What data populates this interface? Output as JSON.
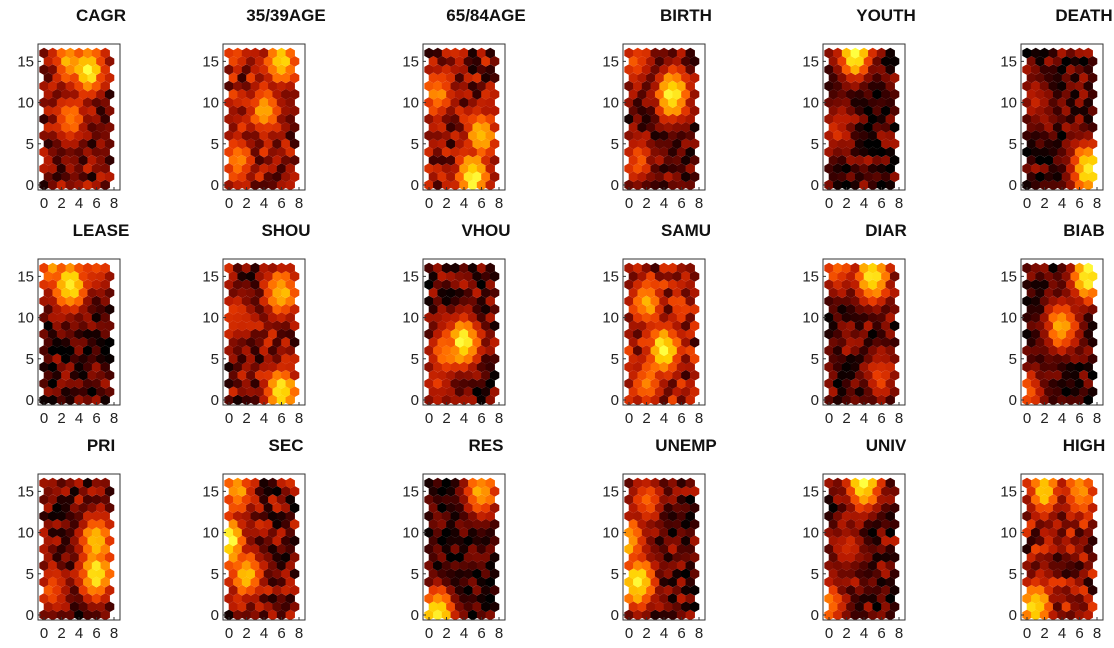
{
  "figure": {
    "grid_columns": 6,
    "grid_rows": 3,
    "colormap": [
      "#000000",
      "#3a0000",
      "#7a0a00",
      "#b81a00",
      "#e83a00",
      "#ff6a00",
      "#ffa000",
      "#ffd000",
      "#ffff40"
    ]
  },
  "chart_data": [
    {
      "type": "heatmap",
      "title": "CAGR",
      "xticks": [
        0,
        2,
        4,
        6,
        8
      ],
      "yticks": [
        0,
        5,
        10,
        15
      ],
      "xlim": [
        0,
        8
      ],
      "ylim": [
        0,
        16.5
      ],
      "hotspots": [
        {
          "x": 5,
          "y": 14,
          "v": 1.0
        },
        {
          "x": 3,
          "y": 15,
          "v": 0.8
        },
        {
          "x": 3,
          "y": 8,
          "v": 0.7
        }
      ],
      "base": 0.35
    },
    {
      "type": "heatmap",
      "title": "35/39AGE",
      "xticks": [
        0,
        2,
        4,
        6,
        8
      ],
      "yticks": [
        0,
        5,
        10,
        15
      ],
      "xlim": [
        0,
        8
      ],
      "ylim": [
        0,
        16.5
      ],
      "hotspots": [
        {
          "x": 1,
          "y": 3,
          "v": 0.7
        },
        {
          "x": 4,
          "y": 9,
          "v": 0.75
        },
        {
          "x": 6,
          "y": 15,
          "v": 0.9
        }
      ],
      "base": 0.55
    },
    {
      "type": "heatmap",
      "title": "65/84AGE",
      "xticks": [
        0,
        2,
        4,
        6,
        8
      ],
      "yticks": [
        0,
        5,
        10,
        15
      ],
      "xlim": [
        0,
        8
      ],
      "ylim": [
        0,
        16.5
      ],
      "hotspots": [
        {
          "x": 5,
          "y": 1,
          "v": 1.0
        },
        {
          "x": 6,
          "y": 6,
          "v": 0.85
        },
        {
          "x": 1,
          "y": 11,
          "v": 0.7
        }
      ],
      "base": 0.42
    },
    {
      "type": "heatmap",
      "title": "BIRTH",
      "xticks": [
        0,
        2,
        4,
        6,
        8
      ],
      "yticks": [
        0,
        5,
        10,
        15
      ],
      "xlim": [
        0,
        8
      ],
      "ylim": [
        0,
        16.5
      ],
      "hotspots": [
        {
          "x": 5,
          "y": 11,
          "v": 1.0
        },
        {
          "x": 1,
          "y": 3,
          "v": 0.55
        },
        {
          "x": 1,
          "y": 15,
          "v": 0.55
        }
      ],
      "base": 0.3
    },
    {
      "type": "heatmap",
      "title": "YOUTH",
      "xticks": [
        0,
        2,
        4,
        6,
        8
      ],
      "yticks": [
        0,
        5,
        10,
        15
      ],
      "xlim": [
        0,
        8
      ],
      "ylim": [
        0,
        16.5
      ],
      "hotspots": [
        {
          "x": 3,
          "y": 16,
          "v": 1.0
        },
        {
          "x": 1,
          "y": 7,
          "v": 0.45
        }
      ],
      "base": 0.25
    },
    {
      "type": "heatmap",
      "title": "DEATH",
      "xticks": [
        0,
        2,
        4,
        6,
        8
      ],
      "yticks": [
        0,
        5,
        10,
        15
      ],
      "xlim": [
        0,
        8
      ],
      "ylim": [
        0,
        16.5
      ],
      "hotspots": [
        {
          "x": 7,
          "y": 2,
          "v": 1.0
        },
        {
          "x": 1,
          "y": 10,
          "v": 0.4
        }
      ],
      "base": 0.2
    },
    {
      "type": "heatmap",
      "title": "LEASE",
      "xticks": [
        0,
        2,
        4,
        6,
        8
      ],
      "yticks": [
        0,
        5,
        10,
        15
      ],
      "xlim": [
        0,
        8
      ],
      "ylim": [
        0,
        16.5
      ],
      "hotspots": [
        {
          "x": 3,
          "y": 14,
          "v": 1.0
        },
        {
          "x": 1,
          "y": 16,
          "v": 0.7
        },
        {
          "x": 6,
          "y": 16,
          "v": 0.55
        }
      ],
      "base": 0.22
    },
    {
      "type": "heatmap",
      "title": "SHOU",
      "xticks": [
        0,
        2,
        4,
        6,
        8
      ],
      "yticks": [
        0,
        5,
        10,
        15
      ],
      "xlim": [
        0,
        8
      ],
      "ylim": [
        0,
        16.5
      ],
      "hotspots": [
        {
          "x": 6,
          "y": 1,
          "v": 0.95
        },
        {
          "x": 6,
          "y": 13,
          "v": 0.85
        },
        {
          "x": 1,
          "y": 10,
          "v": 0.5
        }
      ],
      "base": 0.4
    },
    {
      "type": "heatmap",
      "title": "VHOU",
      "xticks": [
        0,
        2,
        4,
        6,
        8
      ],
      "yticks": [
        0,
        5,
        10,
        15
      ],
      "xlim": [
        0,
        8
      ],
      "ylim": [
        0,
        16.5
      ],
      "hotspots": [
        {
          "x": 4,
          "y": 7,
          "v": 1.0
        },
        {
          "x": 2,
          "y": 6,
          "v": 0.7
        },
        {
          "x": 1,
          "y": 2,
          "v": 0.45
        }
      ],
      "base": 0.28
    },
    {
      "type": "heatmap",
      "title": "SAMU",
      "xticks": [
        0,
        2,
        4,
        6,
        8
      ],
      "yticks": [
        0,
        5,
        10,
        15
      ],
      "xlim": [
        0,
        8
      ],
      "ylim": [
        0,
        16.5
      ],
      "hotspots": [
        {
          "x": 4,
          "y": 6,
          "v": 1.0
        },
        {
          "x": 2,
          "y": 12,
          "v": 0.8
        },
        {
          "x": 2,
          "y": 2,
          "v": 0.7
        }
      ],
      "base": 0.55
    },
    {
      "type": "heatmap",
      "title": "DIAR",
      "xticks": [
        0,
        2,
        4,
        6,
        8
      ],
      "yticks": [
        0,
        5,
        10,
        15
      ],
      "xlim": [
        0,
        8
      ],
      "ylim": [
        0,
        16.5
      ],
      "hotspots": [
        {
          "x": 5,
          "y": 15,
          "v": 1.0
        },
        {
          "x": 1,
          "y": 16,
          "v": 0.6
        },
        {
          "x": 6,
          "y": 3,
          "v": 0.5
        }
      ],
      "base": 0.25
    },
    {
      "type": "heatmap",
      "title": "BIAB",
      "xticks": [
        0,
        2,
        4,
        6,
        8
      ],
      "yticks": [
        0,
        5,
        10,
        15
      ],
      "xlim": [
        0,
        8
      ],
      "ylim": [
        0,
        16.5
      ],
      "hotspots": [
        {
          "x": 7,
          "y": 15,
          "v": 1.0
        },
        {
          "x": 4,
          "y": 9,
          "v": 0.8
        },
        {
          "x": 0,
          "y": 1,
          "v": 0.55
        }
      ],
      "base": 0.12
    },
    {
      "type": "heatmap",
      "title": "PRI",
      "xticks": [
        0,
        2,
        4,
        6,
        8
      ],
      "yticks": [
        0,
        5,
        10,
        15
      ],
      "xlim": [
        0,
        8
      ],
      "ylim": [
        0,
        16.5
      ],
      "hotspots": [
        {
          "x": 6,
          "y": 5,
          "v": 1.0
        },
        {
          "x": 6,
          "y": 9,
          "v": 0.9
        },
        {
          "x": 1,
          "y": 3,
          "v": 0.55
        }
      ],
      "base": 0.32
    },
    {
      "type": "heatmap",
      "title": "SEC",
      "xticks": [
        0,
        2,
        4,
        6,
        8
      ],
      "yticks": [
        0,
        5,
        10,
        15
      ],
      "xlim": [
        0,
        8
      ],
      "ylim": [
        0,
        16.5
      ],
      "hotspots": [
        {
          "x": 0,
          "y": 9,
          "v": 1.0
        },
        {
          "x": 2,
          "y": 5,
          "v": 0.85
        },
        {
          "x": 1,
          "y": 15,
          "v": 0.75
        }
      ],
      "base": 0.38
    },
    {
      "type": "heatmap",
      "title": "RES",
      "xticks": [
        0,
        2,
        4,
        6,
        8
      ],
      "yticks": [
        0,
        5,
        10,
        15
      ],
      "xlim": [
        0,
        8
      ],
      "ylim": [
        0,
        16.5
      ],
      "hotspots": [
        {
          "x": 1,
          "y": 0,
          "v": 1.0
        },
        {
          "x": 6,
          "y": 15,
          "v": 0.8
        }
      ],
      "base": 0.08
    },
    {
      "type": "heatmap",
      "title": "UNEMP",
      "xticks": [
        0,
        2,
        4,
        6,
        8
      ],
      "yticks": [
        0,
        5,
        10,
        15
      ],
      "xlim": [
        0,
        8
      ],
      "ylim": [
        0,
        16.5
      ],
      "hotspots": [
        {
          "x": 1,
          "y": 4,
          "v": 1.0
        },
        {
          "x": 0,
          "y": 9,
          "v": 0.8
        },
        {
          "x": 2,
          "y": 14,
          "v": 0.6
        }
      ],
      "base": 0.28
    },
    {
      "type": "heatmap",
      "title": "UNIV",
      "xticks": [
        0,
        2,
        4,
        6,
        8
      ],
      "yticks": [
        0,
        5,
        10,
        15
      ],
      "xlim": [
        0,
        8
      ],
      "ylim": [
        0,
        16.5
      ],
      "hotspots": [
        {
          "x": 4,
          "y": 16,
          "v": 1.0
        },
        {
          "x": 0,
          "y": 1,
          "v": 0.65
        },
        {
          "x": 2,
          "y": 8,
          "v": 0.45
        }
      ],
      "base": 0.28
    },
    {
      "type": "heatmap",
      "title": "HIGH",
      "xticks": [
        0,
        2,
        4,
        6,
        8
      ],
      "yticks": [
        0,
        5,
        10,
        15
      ],
      "xlim": [
        0,
        8
      ],
      "ylim": [
        0,
        16.5
      ],
      "hotspots": [
        {
          "x": 1,
          "y": 1,
          "v": 0.95
        },
        {
          "x": 2,
          "y": 15,
          "v": 0.85
        },
        {
          "x": 6,
          "y": 15,
          "v": 0.75
        }
      ],
      "base": 0.5
    }
  ]
}
